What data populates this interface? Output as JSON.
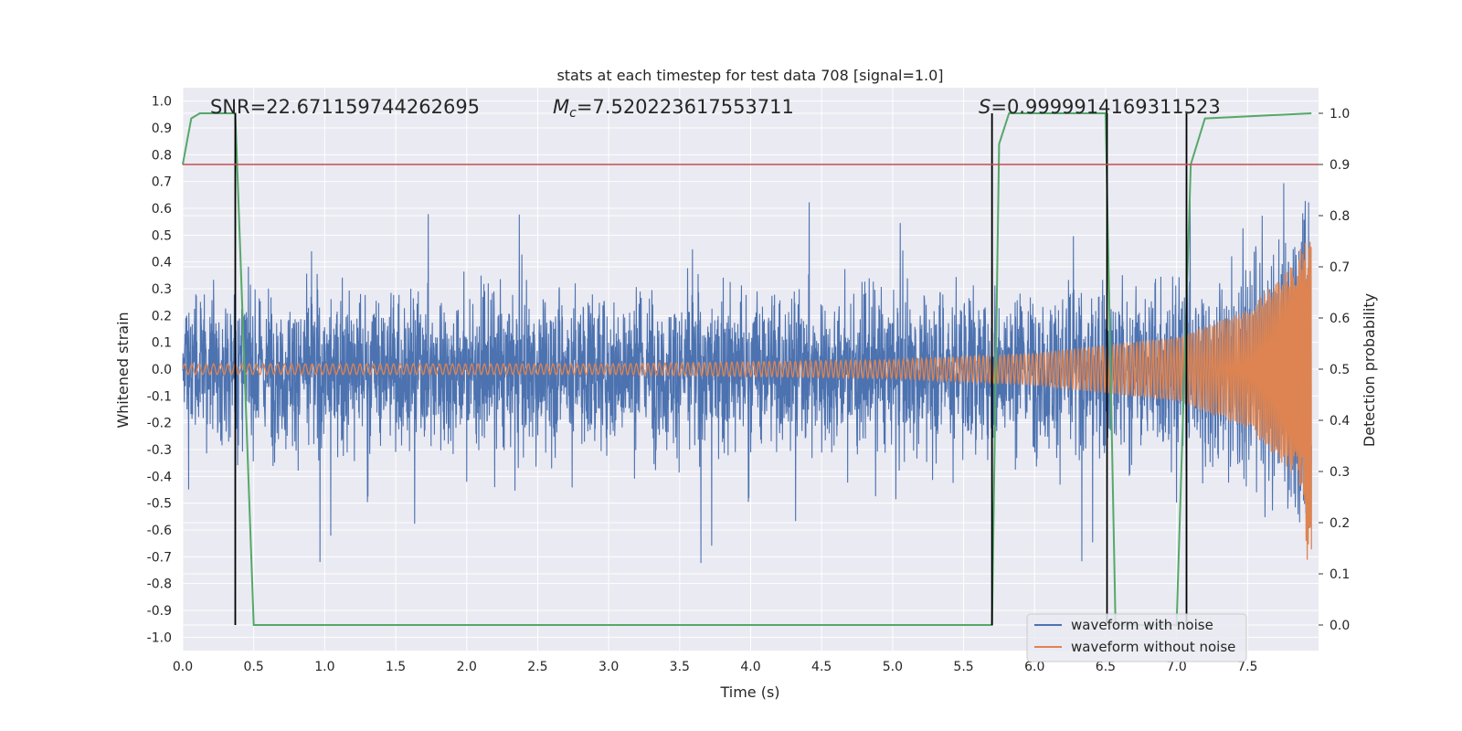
{
  "chart_data": {
    "type": "line",
    "title": "stats at each timestep for test data 708 [signal=1.0]",
    "xlabel": "Time (s)",
    "ylabel": "Whitened strain",
    "ylabel_right": "Detection probability",
    "xlim": [
      0.0,
      8.0
    ],
    "ylim": [
      -1.05,
      1.05
    ],
    "ylim_right": [
      -0.05,
      1.05
    ],
    "xticks": [
      "0.0",
      "0.5",
      "1.0",
      "1.5",
      "2.0",
      "2.5",
      "3.0",
      "3.5",
      "4.0",
      "4.5",
      "5.0",
      "5.5",
      "6.0",
      "6.5",
      "7.0",
      "7.5"
    ],
    "yticks": [
      "1.0",
      "0.9",
      "0.8",
      "0.7",
      "0.6",
      "0.5",
      "0.4",
      "0.3",
      "0.2",
      "0.1",
      "0.0",
      "-0.1",
      "-0.2",
      "-0.3",
      "-0.4",
      "-0.5",
      "-0.6",
      "-0.7",
      "-0.8",
      "-0.9",
      "-1.0"
    ],
    "yticks_right": [
      "1.0",
      "0.9",
      "0.8",
      "0.7",
      "0.6",
      "0.5",
      "0.4",
      "0.3",
      "0.2",
      "0.1",
      "0.0"
    ],
    "annotations": {
      "snr": "SNR=22.671159744262695",
      "mc_prefix": "M",
      "mc_sub": "c",
      "mc_value": "=7.520223617553711",
      "s_prefix": "S",
      "s_value": "=0.9999914169311523"
    },
    "threshold_line": {
      "value": 0.9,
      "axis": "right",
      "color": "#c44e52"
    },
    "vertical_lines": [
      0.37,
      5.7,
      6.51,
      7.07
    ],
    "legend": {
      "position": "bottom-right",
      "entries": [
        {
          "label": "waveform with noise",
          "color": "#4c72b0"
        },
        {
          "label": "waveform without noise",
          "color": "#dd8452"
        }
      ]
    },
    "series": [
      {
        "name": "waveform with noise",
        "color": "#4c72b0",
        "axis": "left",
        "description": "whitened noisy strain, dense random samples mostly within about -0.6 to 0.6 with spikes near +/-0.88"
      },
      {
        "name": "waveform without noise",
        "color": "#dd8452",
        "axis": "left",
        "description": "inspiral chirp, amplitude about 0.02 at t=0 rising to about 0.52 / -0.77 near t=7.95",
        "amplitude_points": [
          [
            0.0,
            0.02
          ],
          [
            3.0,
            0.02
          ],
          [
            5.0,
            0.035
          ],
          [
            6.0,
            0.06
          ],
          [
            7.0,
            0.12
          ],
          [
            7.5,
            0.22
          ],
          [
            7.8,
            0.38
          ],
          [
            7.95,
            0.52
          ]
        ],
        "end_time": 7.95
      },
      {
        "name": "detection probability",
        "color": "#55a868",
        "axis": "right",
        "x": [
          0.0,
          0.06,
          0.12,
          0.37,
          0.5,
          5.7,
          5.75,
          5.82,
          6.5,
          6.57,
          7.0,
          7.1,
          7.2,
          7.95
        ],
        "y": [
          0.9,
          0.99,
          1.0,
          1.0,
          0.0,
          0.0,
          0.94,
          1.0,
          1.0,
          0.0,
          0.0,
          0.9,
          0.99,
          1.0
        ]
      }
    ]
  }
}
